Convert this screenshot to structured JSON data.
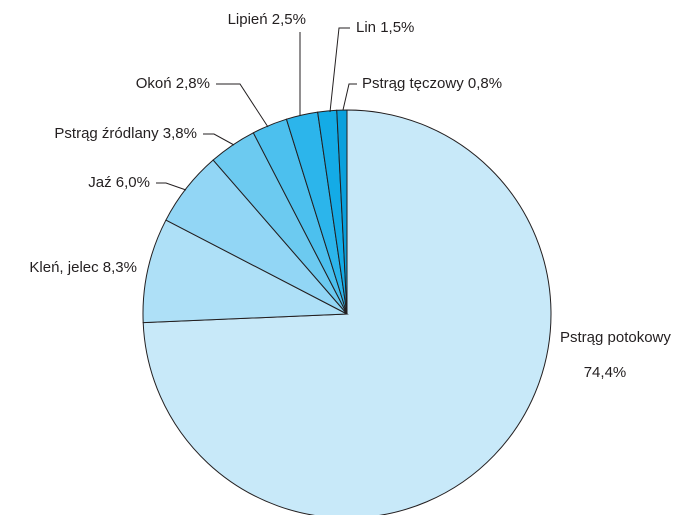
{
  "chart_data": {
    "type": "pie",
    "categories": [
      "Pstrąg potokowy",
      "Kleń, jelec",
      "Jaź",
      "Pstrąg źródlany",
      "Okoń",
      "Lipień",
      "Lin",
      "Pstrąg tęczowy"
    ],
    "values": [
      74.4,
      8.3,
      6.0,
      3.8,
      2.8,
      2.5,
      1.5,
      0.8
    ],
    "value_labels": [
      "74,4%",
      "8,3%",
      "6,0%",
      "3,8%",
      "2,8%",
      "2,5%",
      "1,5%",
      "0,8%"
    ],
    "colors": [
      "#c8e9f9",
      "#aee0f7",
      "#92d6f5",
      "#6ccaf0",
      "#4cc0ee",
      "#2cb5eb",
      "#14abe6",
      "#0aa0dc"
    ]
  }
}
